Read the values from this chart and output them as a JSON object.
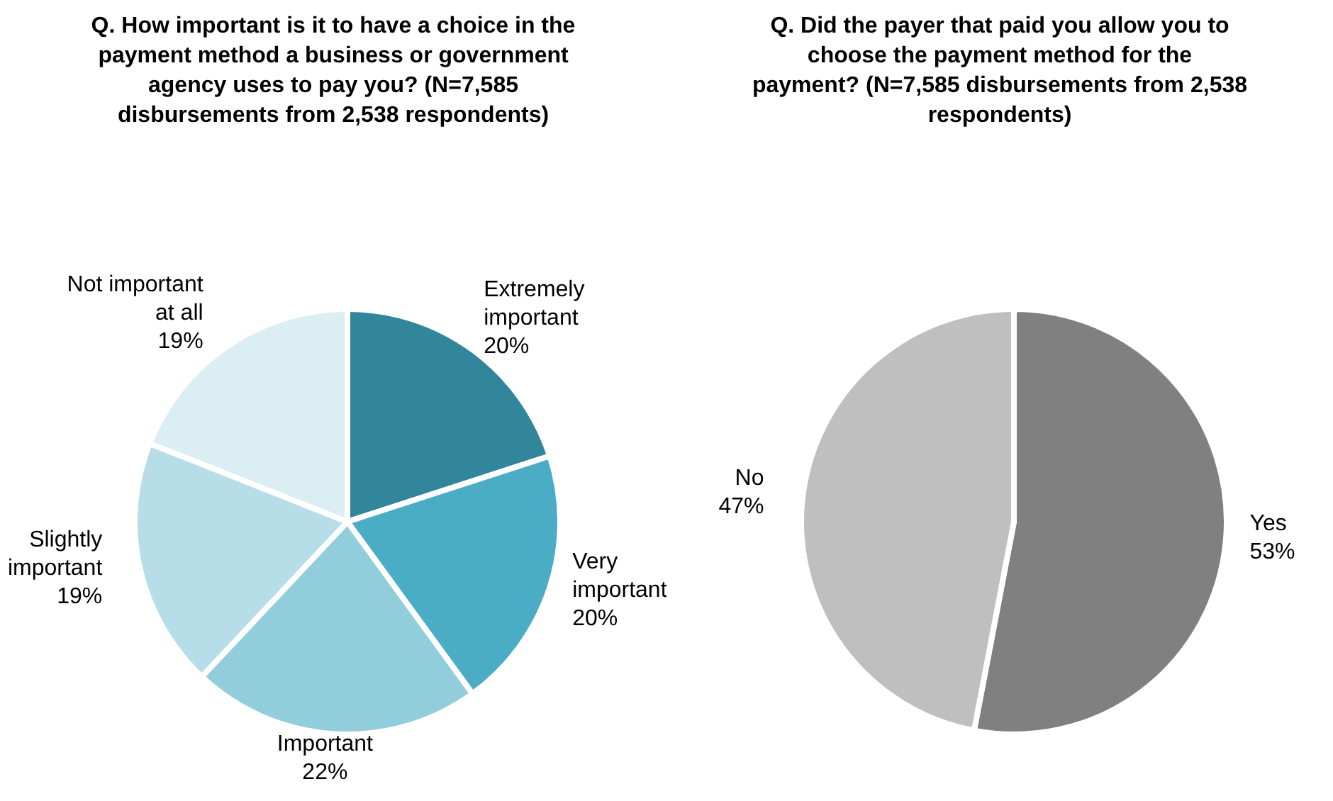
{
  "chart_data": [
    {
      "type": "pie",
      "title": "Q. How important is it to have a choice in the payment method a business or government agency uses to pay you? (N=7,585 disbursements from 2,538 respondents)",
      "categories": [
        "Extremely important",
        "Very important",
        "Important",
        "Slightly important",
        "Not important at all"
      ],
      "values": [
        20,
        20,
        22,
        19,
        19
      ],
      "value_labels": [
        "20%",
        "20%",
        "22%",
        "19%",
        "19%"
      ],
      "colors": [
        "#31869b",
        "#4bacc6",
        "#92cddc",
        "#b7dee8",
        "#daeef3"
      ],
      "legend": false
    },
    {
      "type": "pie",
      "title": "Q. Did the payer that paid you allow you to choose the payment method for the payment? (N=7,585 disbursements from 2,538 respondents)",
      "categories": [
        "Yes",
        "No"
      ],
      "values": [
        53,
        47
      ],
      "value_labels": [
        "53%",
        "47%"
      ],
      "colors": [
        "#808080",
        "#bfbfbf"
      ],
      "legend": false
    }
  ]
}
